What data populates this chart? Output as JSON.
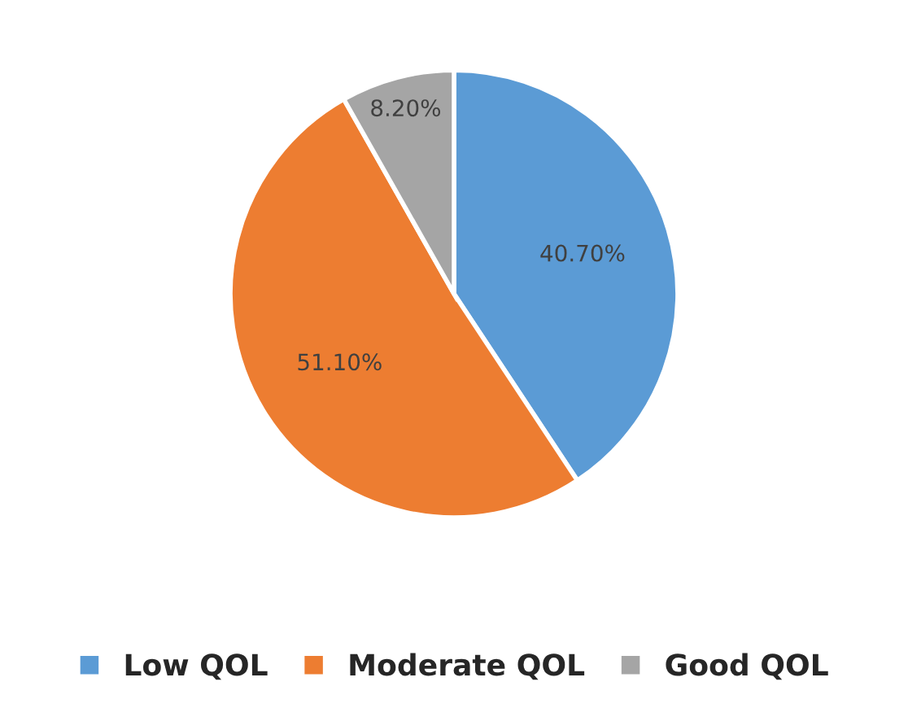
{
  "chart_data": {
    "type": "pie",
    "categories": [
      "Low QOL",
      "Moderate QOL",
      "Good QOL"
    ],
    "values": [
      40.7,
      51.1,
      8.2
    ],
    "colors": [
      "#5b9bd5",
      "#ed7d31",
      "#a5a5a5"
    ],
    "value_labels": [
      "40.70%",
      "51.10%",
      "8.20%"
    ],
    "legend": "bottom"
  }
}
